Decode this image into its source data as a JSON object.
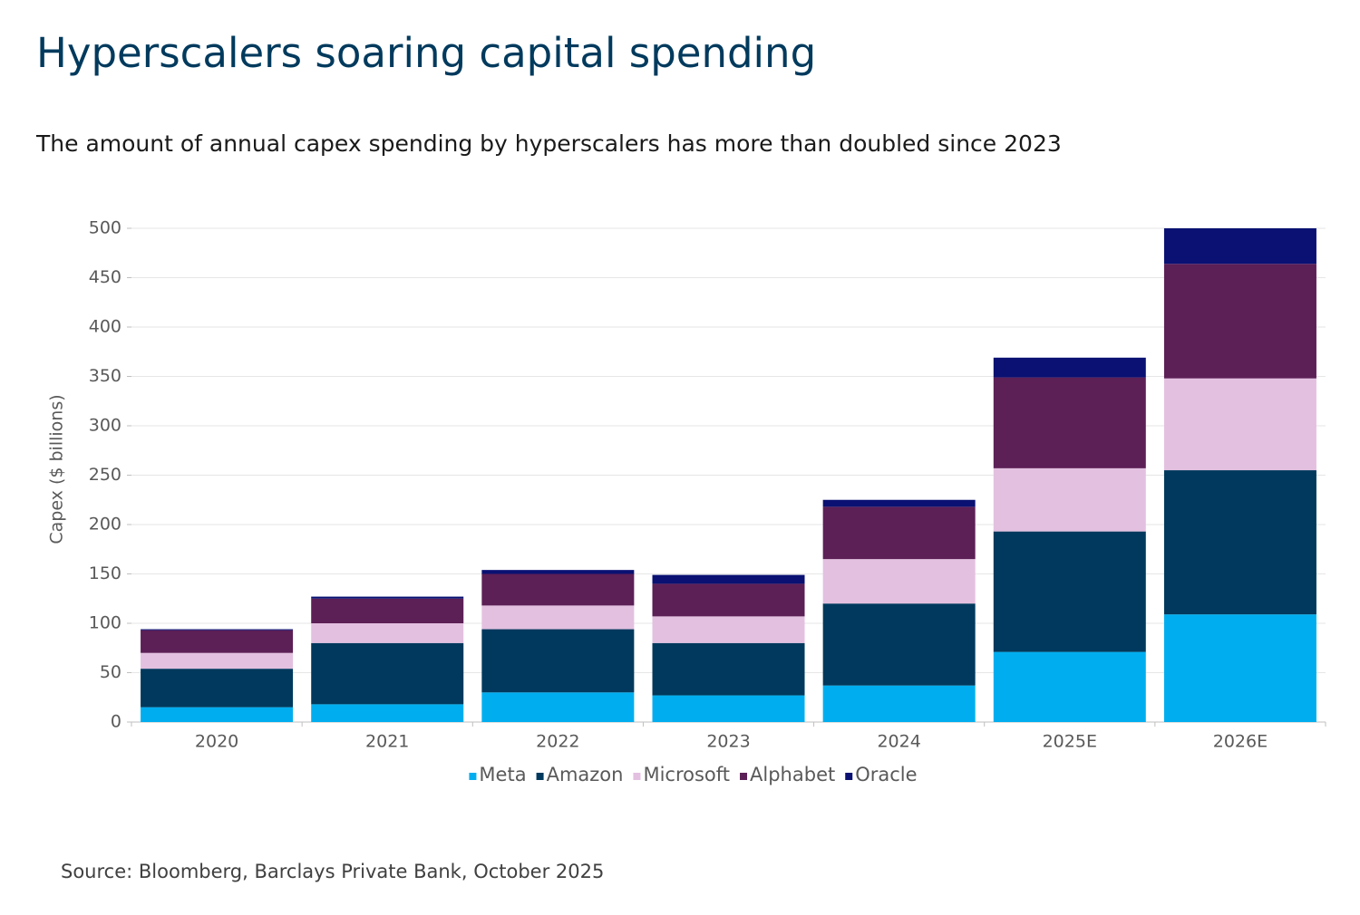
{
  "chart_data": {
    "type": "stacked_bar",
    "title": "Hyperscalers soaring capital spending",
    "subtitle": "The amount of annual capex spending by hyperscalers has more than doubled since 2023",
    "y_label": "Capex ($ billions)",
    "source": "Source: Bloomberg, Barclays Private Bank, October 2025",
    "categories": [
      "2020",
      "2021",
      "2022",
      "2023",
      "2024",
      "2025E",
      "2026E"
    ],
    "series": [
      {
        "name": "Meta",
        "color": "#00aeef",
        "values": [
          15,
          18,
          30,
          27,
          37,
          71,
          109
        ]
      },
      {
        "name": "Amazon",
        "color": "#00395d",
        "values": [
          39,
          62,
          64,
          53,
          83,
          122,
          146
        ]
      },
      {
        "name": "Microsoft",
        "color": "#e3c0e0",
        "values": [
          16,
          20,
          24,
          27,
          45,
          64,
          93
        ]
      },
      {
        "name": "Alphabet",
        "color": "#5c1f56",
        "values": [
          23,
          25,
          32,
          33,
          53,
          92,
          116
        ]
      },
      {
        "name": "Oracle",
        "color": "#0a1172",
        "values": [
          1,
          2,
          4,
          9,
          7,
          20,
          36
        ]
      }
    ],
    "ylim": [
      0,
      500
    ],
    "yticks": [
      0,
      50,
      100,
      150,
      200,
      250,
      300,
      350,
      400,
      450,
      500
    ],
    "grid": true,
    "legend": "bottom"
  }
}
